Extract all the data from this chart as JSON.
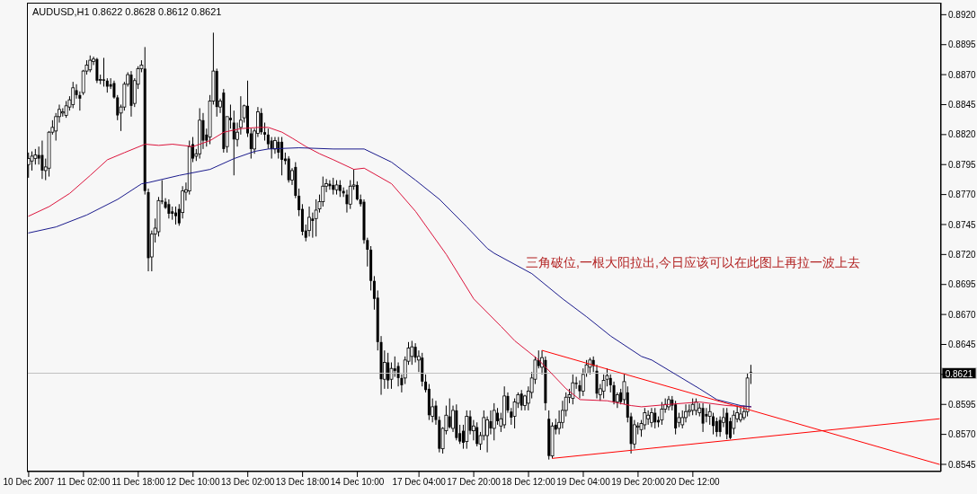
{
  "chart_data": {
    "type": "candlestick",
    "title": "AUDUSD,H1 0.8622 0.8628 0.8612 0.8621",
    "color": "#000000",
    "categories": [
      "10 Dec 2007",
      null,
      null,
      null,
      null,
      null,
      null,
      null,
      null,
      null,
      null,
      null,
      null,
      null,
      null,
      null,
      "11 Dec 02:00",
      null,
      null,
      null,
      null,
      null,
      null,
      null,
      null,
      null,
      null,
      null,
      null,
      null,
      null,
      null,
      "11 Dec 18:00",
      null,
      null,
      null,
      null,
      null,
      null,
      null,
      null,
      null,
      null,
      null,
      null,
      null,
      null,
      null,
      "12 Dec 10:00",
      null,
      null,
      null,
      null,
      null,
      null,
      null,
      null,
      null,
      null,
      null,
      null,
      null,
      null,
      null,
      "13 Dec 02:00",
      null,
      null,
      null,
      null,
      null,
      null,
      null,
      null,
      null,
      null,
      null,
      null,
      null,
      null,
      null,
      "13 Dec 18:00",
      null,
      null,
      null,
      null,
      null,
      null,
      null,
      null,
      null,
      null,
      null,
      null,
      null,
      null,
      null,
      "14 Dec 10:00",
      null,
      null,
      null,
      null,
      null,
      null,
      null,
      null,
      null,
      null,
      null,
      null,
      null,
      null,
      null,
      null,
      null,
      "17 Dec 04:00",
      null,
      null,
      null,
      null,
      null,
      null,
      null,
      null,
      null,
      null,
      null,
      null,
      null,
      null,
      null,
      "17 Dec 20:00",
      null,
      null,
      null,
      null,
      null,
      null,
      null,
      null,
      null,
      null,
      null,
      null,
      null,
      null,
      null,
      "18 Dec 12:00",
      null,
      null,
      null,
      null,
      null,
      null,
      null,
      null,
      null,
      null,
      null,
      null,
      null,
      null,
      null,
      "19 Dec 04:00",
      null,
      null,
      null,
      null,
      null,
      null,
      null,
      null,
      null,
      null,
      null,
      null,
      null,
      null,
      null,
      "19 Dec 20:00",
      null,
      null,
      null,
      null,
      null,
      null,
      null,
      null,
      null,
      null,
      null,
      null,
      null,
      null,
      null,
      "20 Dec 12:00",
      null,
      null,
      null,
      null,
      null,
      null,
      null,
      null,
      null,
      null,
      null,
      null,
      null,
      null,
      null,
      null,
      null,
      null,
      null,
      null,
      null,
      null,
      null,
      null,
      null,
      null,
      null,
      null,
      null,
      null,
      null,
      null,
      null,
      null,
      null,
      null,
      null,
      null,
      null,
      null,
      null,
      null,
      null,
      null,
      null,
      null,
      null,
      null,
      null,
      null,
      null,
      null,
      null,
      null,
      null,
      null,
      null,
      null,
      null,
      null,
      null,
      null,
      null,
      null,
      null,
      null,
      null,
      null,
      null,
      null,
      null,
      null
    ],
    "ohlc": [
      [
        0.8795,
        0.8805,
        0.8784,
        0.88
      ],
      [
        0.8798,
        0.8806,
        0.879,
        0.8802
      ],
      [
        0.88,
        0.8808,
        0.8795,
        0.8803
      ],
      [
        0.8803,
        0.881,
        0.8795,
        0.88
      ],
      [
        0.8803,
        0.8815,
        0.8783,
        0.879
      ],
      [
        0.879,
        0.88,
        0.8782,
        0.8793
      ],
      [
        0.8792,
        0.8823,
        0.8785,
        0.8822
      ],
      [
        0.8822,
        0.8832,
        0.882,
        0.8826
      ],
      [
        0.8823,
        0.8838,
        0.8815,
        0.8835
      ],
      [
        0.8835,
        0.8845,
        0.883,
        0.8841
      ],
      [
        0.8838,
        0.8842,
        0.8835,
        0.8839
      ],
      [
        0.8836,
        0.8848,
        0.8834,
        0.8844
      ],
      [
        0.8843,
        0.8852,
        0.884,
        0.8849
      ],
      [
        0.8845,
        0.8864,
        0.8842,
        0.8859
      ],
      [
        0.8857,
        0.8862,
        0.885,
        0.8853
      ],
      [
        0.8853,
        0.8856,
        0.884,
        0.885
      ],
      [
        0.8855,
        0.8874,
        0.8853,
        0.8873
      ],
      [
        0.8873,
        0.8882,
        0.887,
        0.8878
      ],
      [
        0.8874,
        0.8886,
        0.8872,
        0.8882
      ],
      [
        0.8881,
        0.8885,
        0.8878,
        0.8883
      ],
      [
        0.8883,
        0.8884,
        0.8863,
        0.8865
      ],
      [
        0.8866,
        0.887,
        0.8862,
        0.8866
      ],
      [
        0.8866,
        0.8884,
        0.886,
        0.8865
      ],
      [
        0.8865,
        0.8867,
        0.8855,
        0.886
      ],
      [
        0.8862,
        0.8867,
        0.8858,
        0.886
      ],
      [
        0.8863,
        0.8865,
        0.885,
        0.8851
      ],
      [
        0.8851,
        0.8853,
        0.8832,
        0.8836
      ],
      [
        0.8838,
        0.8845,
        0.8823,
        0.8843
      ],
      [
        0.8843,
        0.8864,
        0.884,
        0.8862
      ],
      [
        0.8862,
        0.8872,
        0.886,
        0.887
      ],
      [
        0.887,
        0.8873,
        0.8835,
        0.8844
      ],
      [
        0.8846,
        0.8867,
        0.8843,
        0.8865
      ],
      [
        0.8862,
        0.8877,
        0.8858,
        0.8875
      ],
      [
        0.8875,
        0.8882,
        0.8872,
        0.8878
      ],
      [
        0.8875,
        0.8893,
        0.877,
        0.8773
      ],
      [
        0.8772,
        0.8775,
        0.8706,
        0.8717
      ],
      [
        0.8718,
        0.874,
        0.8706,
        0.8737
      ],
      [
        0.8737,
        0.875,
        0.873,
        0.8742
      ],
      [
        0.8739,
        0.8768,
        0.8735,
        0.8765
      ],
      [
        0.8765,
        0.8782,
        0.8762,
        0.8764
      ],
      [
        0.8764,
        0.8767,
        0.8758,
        0.8759
      ],
      [
        0.8762,
        0.8766,
        0.875,
        0.8754
      ],
      [
        0.8756,
        0.876,
        0.8749,
        0.8754
      ],
      [
        0.8755,
        0.876,
        0.8745,
        0.8752
      ],
      [
        0.8758,
        0.8762,
        0.8744,
        0.8746
      ],
      [
        0.8755,
        0.8777,
        0.875,
        0.8773
      ],
      [
        0.8772,
        0.878,
        0.8765,
        0.8774
      ],
      [
        0.8773,
        0.8815,
        0.877,
        0.881
      ],
      [
        0.8812,
        0.8818,
        0.8797,
        0.88
      ],
      [
        0.8802,
        0.8808,
        0.8798,
        0.8804
      ],
      [
        0.8804,
        0.8842,
        0.88,
        0.8832
      ],
      [
        0.8832,
        0.8838,
        0.8808,
        0.8815
      ],
      [
        0.882,
        0.8825,
        0.881,
        0.8815
      ],
      [
        0.8818,
        0.8853,
        0.8812,
        0.8848
      ],
      [
        0.8848,
        0.8905,
        0.8845,
        0.8873
      ],
      [
        0.8873,
        0.8875,
        0.8835,
        0.8843
      ],
      [
        0.8843,
        0.885,
        0.8838,
        0.8848
      ],
      [
        0.8855,
        0.8858,
        0.8805,
        0.8808
      ],
      [
        0.881,
        0.8835,
        0.8805,
        0.8835
      ],
      [
        0.8834,
        0.8845,
        0.8825,
        0.8832
      ],
      [
        0.883,
        0.884,
        0.8786,
        0.8816
      ],
      [
        0.8816,
        0.883,
        0.881,
        0.8822
      ],
      [
        0.8826,
        0.8852,
        0.882,
        0.8832
      ],
      [
        0.8834,
        0.8845,
        0.883,
        0.8844
      ],
      [
        0.8844,
        0.8865,
        0.8818,
        0.8821
      ],
      [
        0.8821,
        0.8825,
        0.88,
        0.8808
      ],
      [
        0.8808,
        0.8825,
        0.8804,
        0.8823
      ],
      [
        0.8821,
        0.8843,
        0.8818,
        0.8839
      ],
      [
        0.8838,
        0.8842,
        0.882,
        0.8822
      ],
      [
        0.8822,
        0.883,
        0.8815,
        0.882
      ],
      [
        0.882,
        0.8825,
        0.8808,
        0.8812
      ],
      [
        0.8815,
        0.8818,
        0.88,
        0.8808
      ],
      [
        0.8808,
        0.8818,
        0.8804,
        0.8815
      ],
      [
        0.8814,
        0.8818,
        0.88,
        0.8805
      ],
      [
        0.8814,
        0.8818,
        0.8786,
        0.8799
      ],
      [
        0.88,
        0.8805,
        0.8795,
        0.8798
      ],
      [
        0.88,
        0.8802,
        0.878,
        0.8782
      ],
      [
        0.8782,
        0.8792,
        0.8778,
        0.879
      ],
      [
        0.8793,
        0.8797,
        0.8767,
        0.8769
      ],
      [
        0.8769,
        0.8775,
        0.8752,
        0.8757
      ],
      [
        0.8758,
        0.8762,
        0.8736,
        0.8739
      ],
      [
        0.874,
        0.8745,
        0.8731,
        0.8734
      ],
      [
        0.874,
        0.876,
        0.8735,
        0.8751
      ],
      [
        0.875,
        0.8755,
        0.8734,
        0.8748
      ],
      [
        0.875,
        0.8766,
        0.8735,
        0.8757
      ],
      [
        0.8758,
        0.877,
        0.8755,
        0.8764
      ],
      [
        0.8764,
        0.8785,
        0.876,
        0.8777
      ],
      [
        0.8777,
        0.8783,
        0.8772,
        0.8779
      ],
      [
        0.8779,
        0.8782,
        0.8774,
        0.8777
      ],
      [
        0.8778,
        0.8784,
        0.877,
        0.8774
      ],
      [
        0.8774,
        0.8782,
        0.877,
        0.8778
      ],
      [
        0.8778,
        0.8782,
        0.8768,
        0.8773
      ],
      [
        0.8773,
        0.8776,
        0.8768,
        0.8771
      ],
      [
        0.877,
        0.8774,
        0.8755,
        0.8762
      ],
      [
        0.8762,
        0.8782,
        0.8758,
        0.8777
      ],
      [
        0.8777,
        0.8791,
        0.8774,
        0.8778
      ],
      [
        0.8778,
        0.8781,
        0.8765,
        0.8766
      ],
      [
        0.8766,
        0.877,
        0.876,
        0.8762
      ],
      [
        0.8764,
        0.8766,
        0.8729,
        0.8732
      ],
      [
        0.8732,
        0.8734,
        0.871,
        0.8724
      ],
      [
        0.8724,
        0.8727,
        0.869,
        0.8698
      ],
      [
        0.8698,
        0.8702,
        0.8674,
        0.8683
      ],
      [
        0.8684,
        0.869,
        0.864,
        0.8647
      ],
      [
        0.8647,
        0.8652,
        0.8603,
        0.8616
      ],
      [
        0.8616,
        0.864,
        0.8608,
        0.863
      ],
      [
        0.863,
        0.8638,
        0.8608,
        0.8615
      ],
      [
        0.8616,
        0.863,
        0.8608,
        0.8625
      ],
      [
        0.8625,
        0.8635,
        0.8618,
        0.8623
      ],
      [
        0.8627,
        0.863,
        0.861,
        0.8617
      ],
      [
        0.8617,
        0.862,
        0.8605,
        0.8611
      ],
      [
        0.8617,
        0.8635,
        0.8612,
        0.8632
      ],
      [
        0.8631,
        0.8647,
        0.8628,
        0.8642
      ],
      [
        0.8635,
        0.8648,
        0.8628,
        0.8643
      ],
      [
        0.8643,
        0.8646,
        0.863,
        0.8634
      ],
      [
        0.8632,
        0.864,
        0.8622,
        0.8635
      ],
      [
        0.8634,
        0.8638,
        0.861,
        0.8614
      ],
      [
        0.8614,
        0.862,
        0.8605,
        0.8607
      ],
      [
        0.8608,
        0.8612,
        0.8582,
        0.8586
      ],
      [
        0.8585,
        0.86,
        0.858,
        0.8593
      ],
      [
        0.8594,
        0.8598,
        0.8578,
        0.8582
      ],
      [
        0.8582,
        0.8585,
        0.8555,
        0.8558
      ],
      [
        0.8558,
        0.8576,
        0.8554,
        0.8575
      ],
      [
        0.8573,
        0.8594,
        0.857,
        0.8586
      ],
      [
        0.8585,
        0.86,
        0.8575,
        0.8576
      ],
      [
        0.8575,
        0.8594,
        0.8572,
        0.859
      ],
      [
        0.859,
        0.8595,
        0.8565,
        0.8567
      ],
      [
        0.8571,
        0.8578,
        0.8562,
        0.8564
      ],
      [
        0.8573,
        0.8578,
        0.8558,
        0.8563
      ],
      [
        0.8564,
        0.859,
        0.8558,
        0.8585
      ],
      [
        0.8585,
        0.859,
        0.857,
        0.8573
      ],
      [
        0.8573,
        0.8582,
        0.8565,
        0.8577
      ],
      [
        0.8576,
        0.858,
        0.856,
        0.8562
      ],
      [
        0.8562,
        0.8572,
        0.8557,
        0.8569
      ],
      [
        0.8569,
        0.859,
        0.8565,
        0.8584
      ],
      [
        0.8569,
        0.8585,
        0.8555,
        0.8582
      ],
      [
        0.8581,
        0.859,
        0.857,
        0.8575
      ],
      [
        0.8575,
        0.8596,
        0.8565,
        0.859
      ],
      [
        0.8588,
        0.8592,
        0.8578,
        0.8581
      ],
      [
        0.8577,
        0.8588,
        0.8572,
        0.8583
      ],
      [
        0.8578,
        0.861,
        0.8575,
        0.8602
      ],
      [
        0.8602,
        0.8605,
        0.8588,
        0.859
      ],
      [
        0.8589,
        0.8592,
        0.8578,
        0.8584
      ],
      [
        0.8585,
        0.86,
        0.8575,
        0.8597
      ],
      [
        0.8596,
        0.8605,
        0.8592,
        0.8603
      ],
      [
        0.8604,
        0.8607,
        0.859,
        0.8594
      ],
      [
        0.8594,
        0.8603,
        0.859,
        0.8602
      ],
      [
        0.8596,
        0.861,
        0.859,
        0.8606
      ],
      [
        0.8605,
        0.8622,
        0.86,
        0.8617
      ],
      [
        0.8616,
        0.8635,
        0.8612,
        0.8632
      ],
      [
        0.8632,
        0.864,
        0.8625,
        0.8627
      ],
      [
        0.8626,
        0.864,
        0.862,
        0.8634
      ],
      [
        0.8632,
        0.8635,
        0.859,
        0.8596
      ],
      [
        0.8583,
        0.859,
        0.8549,
        0.8552
      ],
      [
        0.8552,
        0.858,
        0.855,
        0.8577
      ],
      [
        0.8578,
        0.8583,
        0.857,
        0.8574
      ],
      [
        0.8575,
        0.859,
        0.857,
        0.858
      ],
      [
        0.858,
        0.8598,
        0.8575,
        0.859
      ],
      [
        0.859,
        0.8605,
        0.8585,
        0.8601
      ],
      [
        0.8601,
        0.8608,
        0.8596,
        0.8603
      ],
      [
        0.86,
        0.862,
        0.8595,
        0.8613
      ],
      [
        0.8613,
        0.8618,
        0.8608,
        0.8612
      ],
      [
        0.8611,
        0.8615,
        0.86,
        0.8606
      ],
      [
        0.8606,
        0.8625,
        0.8602,
        0.862
      ],
      [
        0.8621,
        0.8632,
        0.8618,
        0.8628
      ],
      [
        0.8626,
        0.8634,
        0.862,
        0.8632
      ],
      [
        0.8632,
        0.8635,
        0.8622,
        0.8627
      ],
      [
        0.8623,
        0.8628,
        0.86,
        0.8604
      ],
      [
        0.8603,
        0.8612,
        0.8598,
        0.8608
      ],
      [
        0.8606,
        0.862,
        0.86,
        0.8615
      ],
      [
        0.8616,
        0.8625,
        0.861,
        0.8619
      ],
      [
        0.8617,
        0.862,
        0.8605,
        0.8611
      ],
      [
        0.8611,
        0.8614,
        0.8595,
        0.8597
      ],
      [
        0.8597,
        0.8605,
        0.8592,
        0.8603
      ],
      [
        0.8605,
        0.8608,
        0.8595,
        0.8597
      ],
      [
        0.8599,
        0.862,
        0.8595,
        0.8614
      ],
      [
        0.8605,
        0.861,
        0.858,
        0.8584
      ],
      [
        0.8585,
        0.8588,
        0.8554,
        0.8562
      ],
      [
        0.8562,
        0.8582,
        0.8558,
        0.8578
      ],
      [
        0.8576,
        0.858,
        0.857,
        0.8577
      ],
      [
        0.8574,
        0.8582,
        0.8568,
        0.8579
      ],
      [
        0.8578,
        0.8592,
        0.8574,
        0.8588
      ],
      [
        0.8583,
        0.859,
        0.8578,
        0.8586
      ],
      [
        0.858,
        0.8592,
        0.8576,
        0.8588
      ],
      [
        0.8588,
        0.8592,
        0.8575,
        0.858
      ],
      [
        0.8582,
        0.8585,
        0.8576,
        0.858
      ],
      [
        0.8582,
        0.8597,
        0.8578,
        0.8591
      ],
      [
        0.8591,
        0.86,
        0.8588,
        0.8595
      ],
      [
        0.8593,
        0.8602,
        0.859,
        0.8599
      ],
      [
        0.8599,
        0.8602,
        0.859,
        0.8594
      ],
      [
        0.8595,
        0.8598,
        0.857,
        0.8575
      ],
      [
        0.858,
        0.8588,
        0.8576,
        0.8584
      ],
      [
        0.8578,
        0.859,
        0.8575,
        0.8584
      ],
      [
        0.8584,
        0.8595,
        0.858,
        0.8589
      ],
      [
        0.8589,
        0.8595,
        0.8585,
        0.859
      ],
      [
        0.859,
        0.86,
        0.8586,
        0.8595
      ],
      [
        0.859,
        0.86,
        0.8586,
        0.8597
      ],
      [
        0.8588,
        0.8596,
        0.8585,
        0.8592
      ],
      [
        0.8592,
        0.8596,
        0.8572,
        0.8579
      ],
      [
        0.8587,
        0.8592,
        0.858,
        0.8585
      ],
      [
        0.8585,
        0.8595,
        0.8578,
        0.8589
      ],
      [
        0.8585,
        0.8588,
        0.857,
        0.8577
      ],
      [
        0.8581,
        0.8584,
        0.8568,
        0.8572
      ],
      [
        0.8582,
        0.8585,
        0.8568,
        0.8572
      ],
      [
        0.858,
        0.8592,
        0.8576,
        0.8584
      ],
      [
        0.8588,
        0.8592,
        0.8566,
        0.857
      ],
      [
        0.8581,
        0.8584,
        0.8566,
        0.8567
      ],
      [
        0.8575,
        0.859,
        0.857,
        0.8586
      ],
      [
        0.8583,
        0.8594,
        0.858,
        0.8588
      ],
      [
        0.8582,
        0.8592,
        0.858,
        0.8587
      ],
      [
        0.8584,
        0.8594,
        0.8582,
        0.8589
      ],
      [
        0.8589,
        0.8621,
        0.8585,
        0.8617
      ],
      [
        0.8622,
        0.8628,
        0.8612,
        0.8621
      ],
      null,
      null,
      null,
      null,
      null,
      null,
      null,
      null,
      null,
      null,
      null,
      null,
      null,
      null,
      null,
      null,
      null,
      null,
      null,
      null,
      null,
      null,
      null,
      null,
      null,
      null,
      null,
      null,
      null,
      null,
      null,
      null,
      null,
      null,
      null,
      null,
      null,
      null,
      null,
      null,
      null,
      null,
      null,
      null,
      null,
      null,
      null,
      null,
      null,
      null,
      null,
      null,
      null,
      null,
      null
    ],
    "series": [
      {
        "type": "line",
        "color": "#dc143c",
        "values": [
          0.8752,
          null,
          null,
          null,
          null,
          null,
          0.876,
          null,
          null,
          null,
          null,
          null,
          0.8771,
          null,
          null,
          null,
          null,
          null,
          0.8786,
          null,
          null,
          null,
          null,
          0.8799,
          null,
          null,
          null,
          null,
          0.8805,
          null,
          null,
          null,
          null,
          null,
          0.8812,
          null,
          null,
          null,
          0.8811,
          null,
          null,
          null,
          0.8812,
          null,
          null,
          null,
          null,
          null,
          0.881,
          null,
          null,
          null,
          null,
          0.8815,
          null,
          null,
          null,
          0.8822,
          null,
          null,
          null,
          null,
          0.8825,
          null,
          null,
          null,
          null,
          0.8826,
          null,
          null,
          0.8826,
          null,
          null,
          null,
          0.8822,
          null,
          null,
          0.8817,
          null,
          null,
          null,
          0.881,
          null,
          null,
          null,
          0.8804,
          null,
          null,
          null,
          0.8799,
          null,
          null,
          null,
          null,
          null,
          0.8791,
          null,
          null,
          0.8792,
          null,
          null,
          null,
          null,
          null,
          null,
          null,
          0.8779,
          null,
          null,
          null,
          null,
          null,
          null,
          0.8756,
          null,
          null,
          null,
          null,
          null,
          null,
          null,
          null,
          0.872,
          null,
          null,
          null,
          null,
          null,
          null,
          null,
          0.8683,
          null,
          null,
          null,
          null,
          null,
          null,
          null,
          0.866,
          null,
          null,
          null,
          0.8648,
          null,
          null,
          null,
          null,
          null,
          null,
          0.8632,
          null,
          null,
          null,
          null,
          null,
          null,
          null,
          0.8608,
          null,
          null,
          null,
          0.8599,
          null,
          null,
          null,
          null,
          null,
          null,
          null,
          0.8598,
          null,
          null,
          null,
          null,
          null,
          null,
          0.8594,
          null,
          null,
          0.8593,
          null,
          null,
          null,
          null,
          null,
          null,
          null,
          0.8595,
          null,
          null,
          null,
          null,
          null,
          null,
          null,
          null,
          0.8597,
          null,
          null,
          null,
          null,
          null,
          null,
          null,
          0.8594,
          null,
          null,
          null,
          null,
          null,
          null,
          0.8593,
          null,
          null,
          null,
          null,
          null,
          null,
          null,
          null,
          null,
          null,
          null,
          null,
          null,
          null,
          null,
          null,
          null,
          null,
          null,
          null,
          null,
          null,
          null,
          null,
          null,
          null,
          null,
          null,
          null,
          null,
          null,
          null,
          null,
          null,
          null,
          null,
          null,
          null,
          null,
          null,
          null,
          null,
          null,
          null,
          null,
          null,
          null,
          null,
          null,
          null,
          null,
          null,
          null,
          null,
          null
        ]
      },
      {
        "type": "line",
        "color": "#1a1a8c",
        "values": [
          0.8738,
          null,
          null,
          null,
          null,
          null,
          null,
          null,
          0.8743,
          null,
          null,
          null,
          null,
          null,
          null,
          null,
          null,
          0.8753,
          null,
          null,
          null,
          null,
          null,
          null,
          null,
          null,
          0.8766,
          null,
          null,
          null,
          null,
          null,
          null,
          0.8779,
          null,
          0.878,
          null,
          null,
          null,
          null,
          null,
          null,
          null,
          null,
          0.8786,
          null,
          null,
          null,
          null,
          null,
          null,
          null,
          null,
          0.8791,
          null,
          null,
          null,
          null,
          null,
          null,
          0.88,
          null,
          null,
          null,
          null,
          null,
          0.8806,
          null,
          null,
          null,
          0.8808,
          null,
          null,
          null,
          null,
          null,
          null,
          null,
          null,
          0.8809,
          null,
          null,
          null,
          null,
          null,
          null,
          null,
          null,
          null,
          0.8808,
          null,
          null,
          null,
          null,
          null,
          null,
          null,
          null,
          0.8808,
          null,
          null,
          null,
          null,
          null,
          null,
          null,
          0.8797,
          null,
          null,
          null,
          null,
          null,
          null,
          0.8782,
          null,
          null,
          null,
          null,
          null,
          null,
          0.8766,
          null,
          null,
          null,
          null,
          null,
          null,
          null,
          0.8743,
          null,
          null,
          null,
          null,
          null,
          0.8725,
          null,
          0.8721,
          null,
          null,
          null,
          null,
          null,
          null,
          null,
          null,
          null,
          null,
          0.8704,
          null,
          null,
          null,
          null,
          null,
          null,
          null,
          null,
          0.8683,
          null,
          null,
          null,
          null,
          null,
          null,
          0.8668,
          null,
          null,
          null,
          null,
          null,
          null,
          0.8652,
          null,
          null,
          null,
          null,
          null,
          null,
          null,
          null,
          0.8635,
          null,
          null,
          0.8632,
          null,
          null,
          null,
          null,
          null,
          null,
          0.862,
          null,
          null,
          null,
          null,
          null,
          null,
          0.8608,
          null,
          null,
          null,
          null,
          0.8599,
          null,
          null,
          null,
          null,
          null,
          null,
          0.8594,
          null,
          null,
          0.8593,
          null,
          null,
          null,
          null,
          null,
          null,
          null,
          null,
          null,
          null,
          null,
          null,
          null,
          null,
          null,
          null,
          null,
          null,
          null,
          null,
          null,
          null,
          null,
          null,
          null,
          null,
          null,
          null,
          null,
          null,
          null,
          null,
          null,
          null,
          null,
          null,
          null,
          null,
          null,
          null,
          null,
          null,
          null,
          null,
          null,
          null,
          null,
          null,
          null,
          null,
          null,
          null,
          null,
          null,
          null
        ]
      },
      {
        "type": "line",
        "color": "#ff0000",
        "values": [
          null,
          null,
          null,
          null,
          null,
          null,
          null,
          null,
          null,
          null,
          null,
          null,
          null,
          null,
          null,
          null,
          null,
          null,
          null,
          null,
          null,
          null,
          null,
          null,
          null,
          null,
          null,
          null,
          null,
          null,
          null,
          null,
          null,
          null,
          null,
          null,
          null,
          null,
          null,
          null,
          null,
          null,
          null,
          null,
          null,
          null,
          null,
          null,
          null,
          null,
          null,
          null,
          null,
          null,
          null,
          null,
          null,
          null,
          null,
          null,
          null,
          null,
          null,
          null,
          null,
          null,
          null,
          null,
          null,
          null,
          null,
          null,
          null,
          null,
          null,
          null,
          null,
          null,
          null,
          null,
          null,
          null,
          null,
          null,
          null,
          null,
          null,
          null,
          null,
          null,
          null,
          null,
          null,
          null,
          null,
          null,
          null,
          null,
          null,
          null,
          null,
          null,
          null,
          null,
          null,
          null,
          null,
          null,
          null,
          null,
          null,
          null,
          null,
          null,
          null,
          null,
          null,
          null,
          null,
          null,
          null,
          null,
          null,
          null,
          null,
          null,
          null,
          null,
          null,
          null,
          null,
          null,
          null,
          null,
          null,
          null,
          null,
          null,
          null,
          null,
          null,
          null,
          null,
          null,
          null,
          null,
          null,
          null,
          null,
          null,
          0.864,
          null,
          null,
          null,
          null,
          null,
          null,
          null,
          null,
          null,
          null,
          null,
          null,
          null,
          null,
          null,
          null,
          null,
          null,
          null,
          null,
          null,
          null,
          null,
          null,
          null,
          null,
          null,
          null,
          null,
          null,
          null,
          null,
          null,
          null,
          null,
          null,
          null,
          null,
          null,
          null,
          null,
          null,
          null,
          null,
          null,
          null,
          null,
          null,
          null,
          null,
          null,
          null,
          null,
          null,
          null,
          null,
          null,
          null,
          null,
          null,
          null,
          null,
          null,
          null,
          null,
          null,
          null,
          null,
          null,
          null,
          null,
          null,
          null,
          null,
          null,
          null,
          null,
          null,
          null,
          null,
          null,
          null,
          null,
          null,
          null,
          null,
          null,
          null,
          null,
          null,
          null,
          null,
          null,
          null,
          null,
          null,
          null,
          null,
          null,
          null,
          null,
          null,
          null,
          null,
          null,
          null,
          null,
          null,
          null,
          null,
          null,
          null,
          null,
          null,
          null,
          0.8545
        ]
      },
      {
        "type": "line",
        "color": "#ff0000",
        "values": [
          null,
          null,
          null,
          null,
          null,
          null,
          null,
          null,
          null,
          null,
          null,
          null,
          null,
          null,
          null,
          null,
          null,
          null,
          null,
          null,
          null,
          null,
          null,
          null,
          null,
          null,
          null,
          null,
          null,
          null,
          null,
          null,
          null,
          null,
          null,
          null,
          null,
          null,
          null,
          null,
          null,
          null,
          null,
          null,
          null,
          null,
          null,
          null,
          null,
          null,
          null,
          null,
          null,
          null,
          null,
          null,
          null,
          null,
          null,
          null,
          null,
          null,
          null,
          null,
          null,
          null,
          null,
          null,
          null,
          null,
          null,
          null,
          null,
          null,
          null,
          null,
          null,
          null,
          null,
          null,
          null,
          null,
          null,
          null,
          null,
          null,
          null,
          null,
          null,
          null,
          null,
          null,
          null,
          null,
          null,
          null,
          null,
          null,
          null,
          null,
          null,
          null,
          null,
          null,
          null,
          null,
          null,
          null,
          null,
          null,
          null,
          null,
          null,
          null,
          null,
          null,
          null,
          null,
          null,
          null,
          null,
          null,
          null,
          null,
          null,
          null,
          null,
          null,
          null,
          null,
          null,
          null,
          null,
          null,
          null,
          null,
          null,
          null,
          null,
          null,
          null,
          null,
          null,
          null,
          null,
          null,
          null,
          null,
          null,
          null,
          null,
          null,
          null,
          0.855,
          null,
          null,
          null,
          null,
          null,
          null,
          null,
          null,
          null,
          null,
          null,
          null,
          null,
          null,
          null,
          null,
          null,
          null,
          null,
          null,
          null,
          null,
          null,
          null,
          null,
          null,
          null,
          null,
          null,
          null,
          null,
          null,
          null,
          null,
          null,
          null,
          null,
          null,
          null,
          null,
          null,
          null,
          null,
          null,
          null,
          null,
          null,
          null,
          null,
          null,
          null,
          null,
          null,
          null,
          null,
          null,
          null,
          null,
          null,
          null,
          null,
          null,
          null,
          null,
          null,
          null,
          null,
          null,
          null,
          null,
          null,
          null,
          null,
          null,
          null,
          null,
          null,
          null,
          null,
          null,
          null,
          null,
          null,
          null,
          null,
          null,
          null,
          null,
          null,
          null,
          null,
          null,
          null,
          null,
          null,
          null,
          null,
          null,
          null,
          null,
          null,
          null,
          null,
          null,
          null,
          null,
          null,
          null,
          null,
          null,
          null,
          null,
          0.8583
        ]
      }
    ],
    "ylim": [
      0.8539,
      0.893
    ],
    "yticks": [
      {
        "value": 0.8545,
        "label": "0.8545"
      },
      {
        "value": 0.857,
        "label": "0.8570"
      },
      {
        "value": 0.8595,
        "label": "0.8595"
      },
      {
        "value": 0.862,
        "label": null
      },
      {
        "value": 0.8645,
        "label": "0.8645"
      },
      {
        "value": 0.867,
        "label": "0.8670"
      },
      {
        "value": 0.8695,
        "label": "0.8695"
      },
      {
        "value": 0.872,
        "label": "0.8720"
      },
      {
        "value": 0.8745,
        "label": "0.8745"
      },
      {
        "value": 0.877,
        "label": "0.8770"
      },
      {
        "value": 0.8795,
        "label": "0.8795"
      },
      {
        "value": 0.882,
        "label": "0.8820"
      },
      {
        "value": 0.8845,
        "label": "0.8845"
      },
      {
        "value": 0.887,
        "label": "0.8870"
      },
      {
        "value": 0.8895,
        "label": "0.8895"
      },
      {
        "value": 0.892,
        "label": "0.8920"
      }
    ],
    "ref_lines": [
      {
        "axis": "y",
        "value": 0.8621,
        "label": "0.8621",
        "color": "#c0c0c0"
      }
    ],
    "annotations": [
      "三角破位,一根大阳拉出,今日应该可以在此图上再拉一波上去"
    ]
  }
}
